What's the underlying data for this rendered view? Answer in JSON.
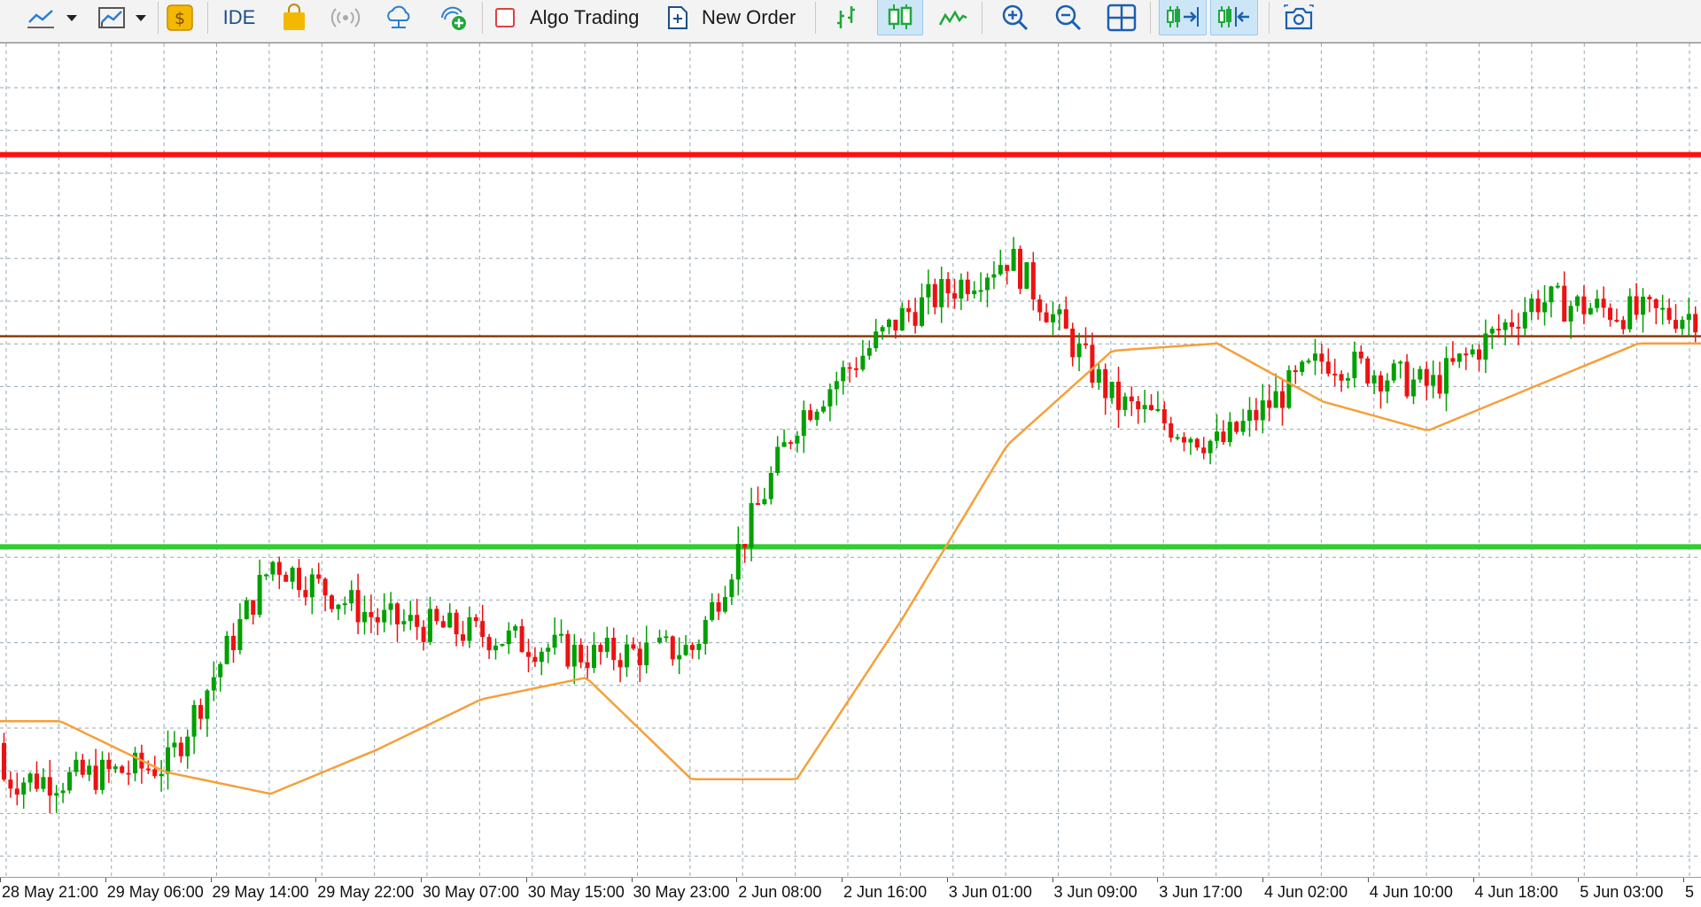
{
  "toolbar": {
    "ide_label": "IDE",
    "algo_trading_label": "Algo Trading",
    "new_order_label": "New Order",
    "icons": [
      "line-chart-icon",
      "dropdown-arrow-icon",
      "indicators-icon",
      "dropdown-arrow-icon",
      "dollar-icon",
      "ide-label",
      "market-bag-icon",
      "signals-icon",
      "cloud-hosting-icon",
      "vps-icon",
      "algo-trading-icon",
      "new-order-icon",
      "bar-chart-icon",
      "candlestick-icon",
      "line-icon",
      "zoom-in-icon",
      "zoom-out-icon",
      "tile-windows-icon",
      "autoscroll-icon",
      "chart-shift-icon",
      "screenshot-icon"
    ]
  },
  "chart": {
    "colors": {
      "bull": "#00a000",
      "bear": "#ee1111",
      "ma": "#f5a03a",
      "resistance": "#ff1010",
      "pivot": "#8b3a10",
      "support": "#33cc33",
      "grid": "#97a8b4"
    },
    "x_axis_labels": [
      "28 May 21:00",
      "29 May 06:00",
      "29 May 14:00",
      "29 May 22:00",
      "30 May 07:00",
      "30 May 15:00",
      "30 May 23:00",
      "2 Jun 08:00",
      "2 Jun 16:00",
      "3 Jun 01:00",
      "3 Jun 09:00",
      "3 Jun 17:00",
      "4 Jun 02:00",
      "4 Jun 10:00",
      "4 Jun 18:00",
      "5 Jun 03:00",
      "5"
    ],
    "horizontal_lines": [
      {
        "name": "resistance-line",
        "color": "#ff1010",
        "level": 0.92
      },
      {
        "name": "pivot-line",
        "color": "#8b3a10",
        "level": 0.67
      },
      {
        "name": "support-line",
        "color": "#33cc33",
        "level": 0.38
      }
    ]
  },
  "chart_data": {
    "type": "line",
    "title": "",
    "x": [
      "28 May 21:00",
      "29 May 06:00",
      "29 May 14:00",
      "29 May 22:00",
      "30 May 07:00",
      "30 May 15:00",
      "30 May 23:00",
      "2 Jun 08:00",
      "2 Jun 16:00",
      "3 Jun 01:00",
      "3 Jun 09:00",
      "3 Jun 17:00",
      "4 Jun 02:00",
      "4 Jun 10:00",
      "4 Jun 18:00",
      "5 Jun 03:00"
    ],
    "series": [
      {
        "values": [
          0.06,
          0.08,
          0.36,
          0.28,
          0.26,
          0.23,
          0.24,
          0.56,
          0.7,
          0.78,
          0.58,
          0.52,
          0.64,
          0.6,
          0.72,
          0.7
        ]
      },
      {
        "values": [
          0.14,
          0.07,
          0.04,
          0.1,
          0.17,
          0.2,
          0.06,
          0.06,
          0.28,
          0.52,
          0.65,
          0.66,
          0.58,
          0.54,
          0.6,
          0.66
        ]
      }
    ],
    "horizontal_lines": [
      0.92,
      0.67,
      0.38
    ],
    "ylim": [
      0,
      1
    ],
    "grid": true,
    "legend": "none"
  }
}
